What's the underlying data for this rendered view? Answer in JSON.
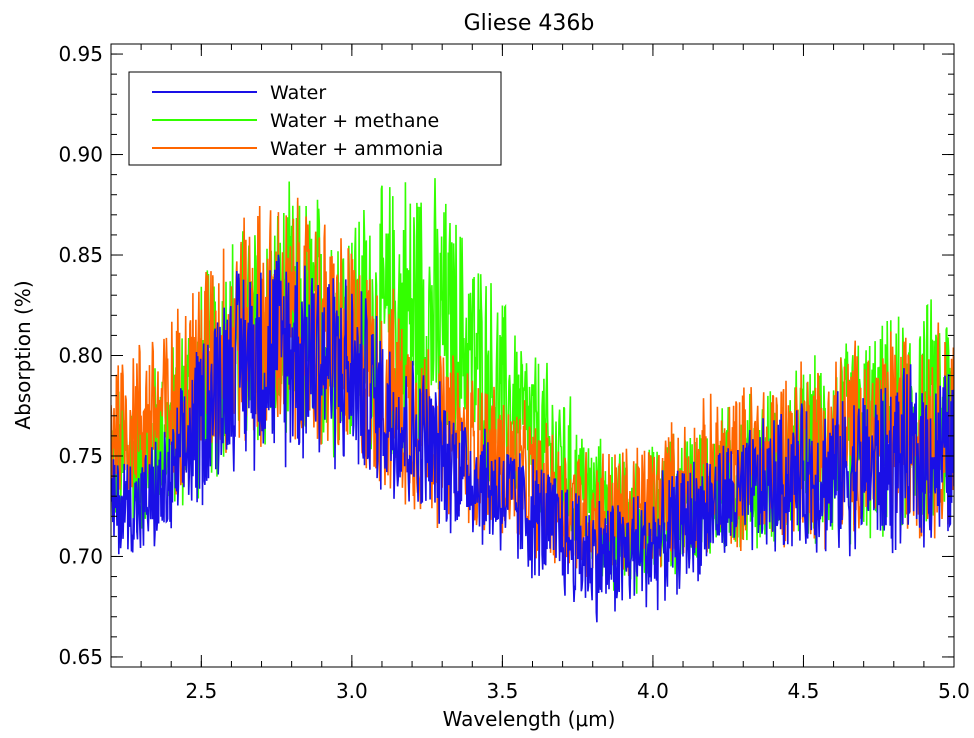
{
  "chart_data": {
    "type": "line",
    "title": "Gliese 436b",
    "xlabel": "Wavelength (μm)",
    "ylabel": "Absorption (%)",
    "xlim": [
      2.2,
      5.0
    ],
    "ylim": [
      0.645,
      0.955
    ],
    "x_ticks": [
      "2.5",
      "3.0",
      "3.5",
      "4.0",
      "4.5",
      "5.0"
    ],
    "y_ticks": [
      "0.65",
      "0.70",
      "0.75",
      "0.80",
      "0.85",
      "0.90",
      "0.95"
    ],
    "legend_position": "top-left",
    "grid": false,
    "series": [
      {
        "name": "Water",
        "color": "#1a10e6",
        "x": [
          2.2,
          2.3,
          2.4,
          2.5,
          2.6,
          2.7,
          2.8,
          2.9,
          3.0,
          3.1,
          3.2,
          3.3,
          3.4,
          3.5,
          3.6,
          3.7,
          3.8,
          3.9,
          4.0,
          4.1,
          4.2,
          4.3,
          4.4,
          4.5,
          4.6,
          4.7,
          4.8,
          4.9,
          5.0
        ],
        "y_mid": [
          0.725,
          0.725,
          0.735,
          0.77,
          0.795,
          0.8,
          0.805,
          0.8,
          0.79,
          0.775,
          0.76,
          0.75,
          0.74,
          0.73,
          0.72,
          0.71,
          0.7,
          0.7,
          0.705,
          0.715,
          0.725,
          0.73,
          0.735,
          0.74,
          0.74,
          0.745,
          0.745,
          0.75,
          0.75
        ],
        "y_spread": [
          0.03,
          0.03,
          0.035,
          0.05,
          0.055,
          0.06,
          0.065,
          0.06,
          0.055,
          0.05,
          0.045,
          0.04,
          0.035,
          0.035,
          0.035,
          0.035,
          0.035,
          0.035,
          0.035,
          0.035,
          0.035,
          0.035,
          0.04,
          0.04,
          0.045,
          0.045,
          0.05,
          0.05,
          0.05
        ]
      },
      {
        "name": "Water + methane",
        "color": "#33ff00",
        "x": [
          2.2,
          2.3,
          2.4,
          2.5,
          2.6,
          2.7,
          2.8,
          2.9,
          3.0,
          3.1,
          3.2,
          3.3,
          3.4,
          3.5,
          3.6,
          3.7,
          3.8,
          3.9,
          4.0,
          4.1,
          4.2,
          4.3,
          4.4,
          4.5,
          4.6,
          4.7,
          4.8,
          4.9,
          5.0
        ],
        "y_mid": [
          0.745,
          0.75,
          0.76,
          0.785,
          0.805,
          0.81,
          0.815,
          0.815,
          0.815,
          0.815,
          0.82,
          0.815,
          0.8,
          0.78,
          0.76,
          0.745,
          0.725,
          0.715,
          0.72,
          0.73,
          0.735,
          0.74,
          0.745,
          0.75,
          0.755,
          0.76,
          0.765,
          0.77,
          0.77
        ],
        "y_spread": [
          0.045,
          0.045,
          0.05,
          0.06,
          0.065,
          0.07,
          0.075,
          0.075,
          0.07,
          0.075,
          0.09,
          0.075,
          0.065,
          0.055,
          0.05,
          0.045,
          0.04,
          0.04,
          0.04,
          0.04,
          0.04,
          0.045,
          0.045,
          0.05,
          0.055,
          0.06,
          0.06,
          0.065,
          0.065
        ]
      },
      {
        "name": "Water + ammonia",
        "color": "#ff6600",
        "x": [
          2.2,
          2.3,
          2.4,
          2.5,
          2.6,
          2.7,
          2.8,
          2.9,
          3.0,
          3.1,
          3.2,
          3.3,
          3.4,
          3.5,
          3.6,
          3.7,
          3.8,
          3.9,
          4.0,
          4.1,
          4.2,
          4.3,
          4.4,
          4.5,
          4.6,
          4.7,
          4.8,
          4.9,
          5.0
        ],
        "y_mid": [
          0.765,
          0.77,
          0.775,
          0.795,
          0.81,
          0.815,
          0.815,
          0.81,
          0.8,
          0.785,
          0.77,
          0.76,
          0.755,
          0.745,
          0.735,
          0.725,
          0.72,
          0.72,
          0.725,
          0.735,
          0.74,
          0.745,
          0.75,
          0.755,
          0.755,
          0.76,
          0.76,
          0.765,
          0.765
        ],
        "y_spread": [
          0.045,
          0.045,
          0.05,
          0.06,
          0.065,
          0.07,
          0.07,
          0.07,
          0.065,
          0.06,
          0.055,
          0.05,
          0.045,
          0.045,
          0.04,
          0.04,
          0.04,
          0.04,
          0.04,
          0.04,
          0.045,
          0.045,
          0.05,
          0.05,
          0.055,
          0.055,
          0.06,
          0.06,
          0.06
        ]
      }
    ]
  }
}
